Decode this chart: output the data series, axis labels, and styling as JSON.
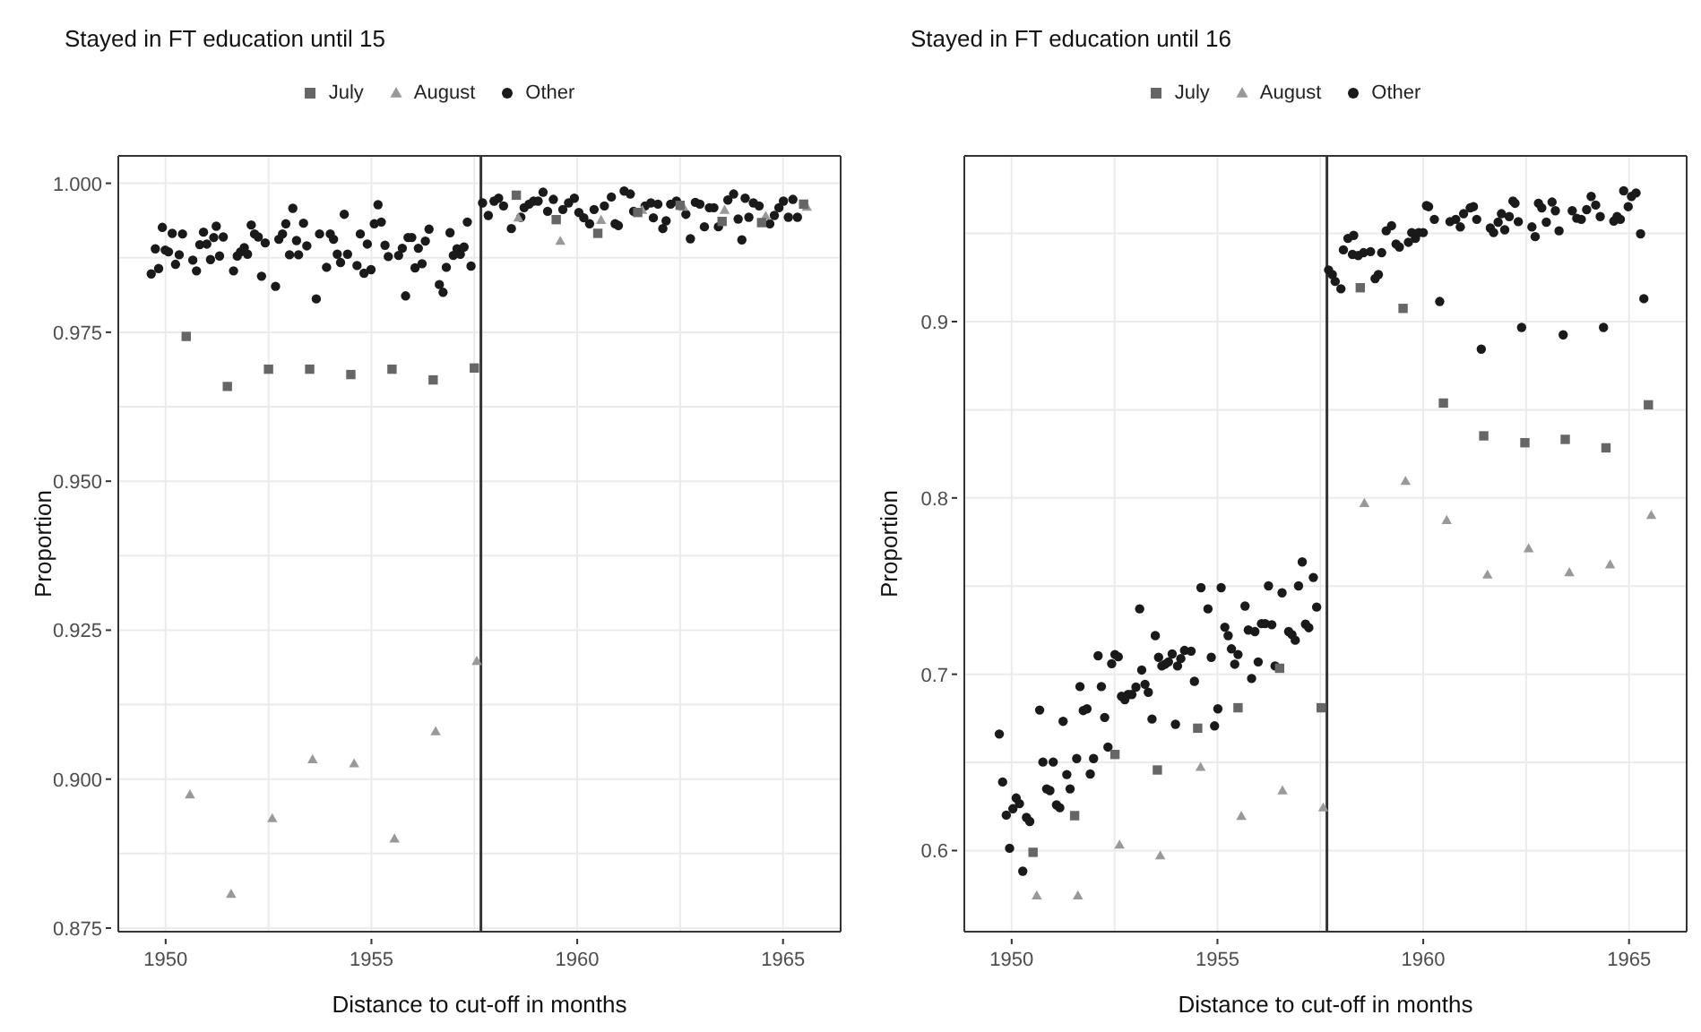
{
  "chart_data": [
    {
      "type": "scatter",
      "title": "Stayed in FT education until 15",
      "xlabel": "Distance to cut-off in months",
      "ylabel": "Proportion",
      "xlim": [
        1948.85,
        1966.4
      ],
      "xticks": [
        1950,
        {
          "value": 1952.5,
          "label": null
        },
        1955,
        {
          "value": 1957.5,
          "label": null
        },
        1960,
        {
          "value": 1962.5,
          "label": null
        },
        1965
      ],
      "ylim": [
        0.8744,
        1.0046
      ],
      "yticks": [
        {
          "value": 0.875,
          "label": "0.875"
        },
        {
          "value": 0.8875,
          "label": null
        },
        {
          "value": 0.9,
          "label": "0.900"
        },
        {
          "value": 0.9125,
          "label": null
        },
        {
          "value": 0.925,
          "label": "0.925"
        },
        {
          "value": 0.9375,
          "label": null
        },
        {
          "value": 0.95,
          "label": "0.950"
        },
        {
          "value": 0.9625,
          "label": null
        },
        {
          "value": 0.975,
          "label": "0.975"
        },
        {
          "value": 0.9875,
          "label": null
        },
        {
          "value": 1,
          "label": "1.000"
        }
      ],
      "grid": true,
      "legend": "top",
      "ref_lines": [
        {
          "axis": "x",
          "value": 1957.66,
          "color": "#333333"
        }
      ],
      "series": [
        {
          "name": "July",
          "color": "#666666",
          "marker": "square",
          "x": [
            1950.5,
            1951.5,
            1952.5,
            1953.5,
            1954.5,
            1955.5,
            1956.5,
            1957.5,
            1958.52,
            1959.49,
            1960.5,
            1961.47,
            1962.5,
            1963.52,
            1964.48,
            1965.5
          ],
          "values": [
            0.9743,
            0.9659,
            0.9688,
            0.9688,
            0.9679,
            0.9688,
            0.967,
            0.969,
            0.998,
            0.9939,
            0.9916,
            0.9951,
            0.9963,
            0.9936,
            0.9934,
            0.9965
          ]
        },
        {
          "name": "August",
          "color": "#999999",
          "marker": "triangle",
          "x": [
            1950.59,
            1951.59,
            1952.59,
            1953.57,
            1954.58,
            1955.56,
            1956.56,
            1957.56,
            1958.57,
            1959.59,
            1960.58,
            1961.58,
            1962.58,
            1963.58,
            1964.58,
            1965.58
          ],
          "values": [
            0.8974,
            0.8807,
            0.8934,
            0.9033,
            0.9026,
            0.89,
            0.908,
            0.9198,
            0.9942,
            0.9903,
            0.9938,
            0.9955,
            0.996,
            0.9955,
            0.9945,
            0.996
          ]
        },
        {
          "name": "Other",
          "color": "#1a1a1a",
          "marker": "circle",
          "x": [
            1949.65,
            1949.75,
            1949.83,
            1949.92,
            1949.99,
            1950.07,
            1950.16,
            1950.24,
            1950.33,
            1950.41,
            1950.66,
            1950.75,
            1950.83,
            1950.92,
            1951.0,
            1951.09,
            1951.17,
            1951.23,
            1951.31,
            1951.4,
            1951.65,
            1951.74,
            1951.82,
            1951.91,
            1951.99,
            1952.08,
            1952.16,
            1952.25,
            1952.33,
            1952.42,
            1952.67,
            1952.75,
            1952.84,
            1952.92,
            1953.01,
            1953.09,
            1953.18,
            1953.23,
            1953.35,
            1953.43,
            1953.66,
            1953.74,
            1953.91,
            1954.0,
            1954.08,
            1954.17,
            1954.25,
            1954.34,
            1954.42,
            1954.65,
            1954.73,
            1954.82,
            1954.9,
            1954.99,
            1955.07,
            1955.16,
            1955.24,
            1955.33,
            1955.41,
            1955.66,
            1955.75,
            1955.83,
            1955.89,
            1955.98,
            1956.06,
            1956.14,
            1956.23,
            1956.31,
            1956.4,
            1956.65,
            1956.74,
            1956.82,
            1956.91,
            1956.99,
            1957.08,
            1957.16,
            1957.25,
            1957.33,
            1957.42,
            1957.7,
            1957.84,
            1957.98,
            1958.09,
            1958.21,
            1958.4,
            1958.63,
            1958.71,
            1958.83,
            1958.94,
            1959.05,
            1959.17,
            1959.28,
            1959.42,
            1959.65,
            1959.79,
            1959.93,
            1960.04,
            1960.16,
            1960.3,
            1960.41,
            1960.66,
            1960.83,
            1960.92,
            1961.0,
            1961.14,
            1961.29,
            1961.37,
            1961.65,
            1961.79,
            1961.85,
            1961.96,
            1962.08,
            1962.16,
            1962.27,
            1962.41,
            1962.64,
            1962.75,
            1962.87,
            1962.98,
            1963.09,
            1963.21,
            1963.32,
            1963.43,
            1963.66,
            1963.8,
            1963.91,
            1964.0,
            1964.08,
            1964.17,
            1964.28,
            1964.42,
            1964.68,
            1964.79,
            1964.9,
            1965.01,
            1965.13,
            1965.24,
            1965.35
          ],
          "values": [
            0.9848,
            0.989,
            0.9857,
            0.9926,
            0.9888,
            0.9885,
            0.9916,
            0.9864,
            0.988,
            0.9915,
            0.9871,
            0.9853,
            0.9897,
            0.9918,
            0.9898,
            0.9872,
            0.9909,
            0.9928,
            0.9878,
            0.991,
            0.9853,
            0.9878,
            0.9885,
            0.9892,
            0.9881,
            0.993,
            0.9915,
            0.991,
            0.9844,
            0.99,
            0.9827,
            0.9906,
            0.9915,
            0.9932,
            0.988,
            0.9958,
            0.9904,
            0.988,
            0.9933,
            0.9895,
            0.9806,
            0.9915,
            0.9859,
            0.9915,
            0.9906,
            0.9881,
            0.9867,
            0.9948,
            0.9881,
            0.9862,
            0.9915,
            0.9849,
            0.9898,
            0.9855,
            0.9932,
            0.9964,
            0.9935,
            0.9896,
            0.9877,
            0.9879,
            0.9891,
            0.9811,
            0.9909,
            0.9909,
            0.9858,
            0.9891,
            0.9865,
            0.9903,
            0.9923,
            0.983,
            0.9817,
            0.9859,
            0.9917,
            0.9879,
            0.989,
            0.9881,
            0.9893,
            0.9935,
            0.9861,
            0.9967,
            0.9946,
            0.997,
            0.9975,
            0.9962,
            0.9924,
            0.9943,
            0.9959,
            0.9965,
            0.997,
            0.997,
            0.9985,
            0.9953,
            0.9973,
            0.9956,
            0.9967,
            0.9975,
            0.9951,
            0.9942,
            0.9932,
            0.9956,
            0.9962,
            0.9977,
            0.9932,
            0.9929,
            0.9987,
            0.9982,
            0.9953,
            0.9962,
            0.9967,
            0.9942,
            0.9965,
            0.9924,
            0.9937,
            0.9965,
            0.997,
            0.9948,
            0.9907,
            0.9968,
            0.9965,
            0.9927,
            0.9959,
            0.9959,
            0.9927,
            0.9972,
            0.9982,
            0.994,
            0.9905,
            0.9975,
            0.9943,
            0.9967,
            0.9962,
            0.9932,
            0.9946,
            0.9959,
            0.997,
            0.9943,
            0.9973,
            0.9943
          ]
        }
      ]
    },
    {
      "type": "scatter",
      "title": "Stayed in FT education until 16",
      "xlabel": "Distance to cut-off in months",
      "ylabel": "Proportion",
      "xlim": [
        1948.85,
        1966.4
      ],
      "xticks": [
        1950,
        {
          "value": 1952.5,
          "label": null
        },
        1955,
        {
          "value": 1957.5,
          "label": null
        },
        1960,
        {
          "value": 1962.5,
          "label": null
        },
        1965
      ],
      "ylim": [
        0.554,
        0.994
      ],
      "yticks": [
        0.6,
        {
          "value": 0.65,
          "label": null
        },
        0.7,
        {
          "value": 0.75,
          "label": null
        },
        0.8,
        {
          "value": 0.85,
          "label": null
        },
        0.9,
        {
          "value": 0.95,
          "label": null
        }
      ],
      "grid": true,
      "legend": "top",
      "ref_lines": [
        {
          "axis": "x",
          "value": 1957.66,
          "color": "#333333"
        }
      ],
      "series": [
        {
          "name": "July",
          "color": "#666666",
          "marker": "square",
          "x": [
            1950.52,
            1951.53,
            1952.51,
            1953.54,
            1954.52,
            1955.5,
            1956.51,
            1957.52,
            1958.47,
            1959.51,
            1960.49,
            1961.47,
            1962.47,
            1963.45,
            1964.44,
            1965.47
          ],
          "values": [
            0.599,
            0.6198,
            0.6545,
            0.6457,
            0.6694,
            0.681,
            0.7034,
            0.681,
            0.9192,
            0.9075,
            0.8538,
            0.8352,
            0.8313,
            0.8332,
            0.8284,
            0.8528
          ]
        },
        {
          "name": "August",
          "color": "#999999",
          "marker": "triangle",
          "x": [
            1950.61,
            1951.61,
            1952.62,
            1953.61,
            1954.59,
            1955.58,
            1956.58,
            1957.57,
            1958.57,
            1959.57,
            1960.57,
            1961.56,
            1962.56,
            1963.55,
            1964.54,
            1965.54
          ],
          "values": [
            0.5744,
            0.5744,
            0.6032,
            0.5971,
            0.6473,
            0.6195,
            0.634,
            0.6243,
            0.797,
            0.8095,
            0.7873,
            0.7564,
            0.7713,
            0.7577,
            0.7622,
            0.7902
          ]
        },
        {
          "name": "Other",
          "color": "#1a1a1a",
          "marker": "circle",
          "x": [
            1949.7,
            1949.78,
            1949.87,
            1949.95,
            1950.03,
            1950.11,
            1950.19,
            1950.27,
            1950.36,
            1950.44,
            1950.68,
            1950.76,
            1950.85,
            1950.93,
            1951.01,
            1951.09,
            1951.17,
            1951.25,
            1951.34,
            1951.42,
            1951.58,
            1951.66,
            1951.74,
            1951.83,
            1951.91,
            1951.99,
            1952.1,
            1952.18,
            1952.26,
            1952.34,
            1952.43,
            1952.51,
            1952.59,
            1952.67,
            1952.75,
            1952.83,
            1952.92,
            1953.02,
            1953.11,
            1953.16,
            1953.24,
            1953.32,
            1953.41,
            1953.49,
            1953.57,
            1953.65,
            1953.73,
            1953.81,
            1953.9,
            1953.98,
            1954.03,
            1954.11,
            1954.2,
            1954.36,
            1954.44,
            1954.6,
            1954.77,
            1954.85,
            1954.93,
            1955.01,
            1955.09,
            1955.18,
            1955.26,
            1955.34,
            1955.42,
            1955.5,
            1955.67,
            1955.75,
            1955.83,
            1955.91,
            1955.99,
            1956.07,
            1956.16,
            1956.24,
            1956.32,
            1956.4,
            1956.57,
            1956.73,
            1956.81,
            1956.89,
            1956.97,
            1957.06,
            1957.14,
            1957.22,
            1957.33,
            1957.41,
            1957.7,
            1957.79,
            1957.86,
            1958.0,
            1958.06,
            1958.17,
            1958.31,
            1958.28,
            1958.42,
            1958.55,
            1958.72,
            1958.83,
            1958.91,
            1958.99,
            1959.1,
            1959.23,
            1959.34,
            1959.42,
            1959.64,
            1959.72,
            1959.81,
            1959.89,
            1960.0,
            1960.08,
            1960.13,
            1960.27,
            1960.4,
            1960.65,
            1960.79,
            1960.9,
            1960.98,
            1961.14,
            1961.22,
            1961.3,
            1961.41,
            1961.63,
            1961.71,
            1961.82,
            1961.9,
            1961.98,
            1962.09,
            1962.18,
            1962.23,
            1962.31,
            1962.39,
            1962.64,
            1962.72,
            1962.8,
            1962.88,
            1962.99,
            1963.13,
            1963.21,
            1963.3,
            1963.4,
            1963.62,
            1963.73,
            1963.84,
            1963.97,
            1964.08,
            1964.19,
            1964.3,
            1964.38,
            1964.63,
            1964.71,
            1964.79,
            1964.87,
            1964.98,
            1965.06,
            1965.17,
            1965.28,
            1965.36
          ],
          "values": [
            0.6661,
            0.6389,
            0.6201,
            0.6013,
            0.6237,
            0.6298,
            0.6266,
            0.5883,
            0.6188,
            0.6165,
            0.6797,
            0.6502,
            0.635,
            0.634,
            0.6502,
            0.6259,
            0.6243,
            0.6733,
            0.6431,
            0.635,
            0.6522,
            0.693,
            0.6794,
            0.6804,
            0.6434,
            0.6522,
            0.7105,
            0.693,
            0.6755,
            0.6587,
            0.706,
            0.7112,
            0.7099,
            0.6875,
            0.6856,
            0.6885,
            0.6885,
            0.6927,
            0.7371,
            0.7024,
            0.6943,
            0.6898,
            0.6746,
            0.7219,
            0.7096,
            0.7047,
            0.7057,
            0.707,
            0.7115,
            0.6716,
            0.7047,
            0.7089,
            0.7135,
            0.7131,
            0.696,
            0.7491,
            0.7371,
            0.7096,
            0.6707,
            0.6804,
            0.7491,
            0.7267,
            0.7219,
            0.7144,
            0.7057,
            0.7112,
            0.7387,
            0.7251,
            0.6976,
            0.7242,
            0.707,
            0.7287,
            0.7287,
            0.7501,
            0.7281,
            0.7047,
            0.7462,
            0.7242,
            0.7225,
            0.7193,
            0.7501,
            0.7637,
            0.7284,
            0.7264,
            0.7549,
            0.7381,
            0.9293,
            0.9267,
            0.9228,
            0.9186,
            0.9407,
            0.9472,
            0.9489,
            0.9381,
            0.9375,
            0.9391,
            0.9397,
            0.9244,
            0.9267,
            0.9391,
            0.9515,
            0.9544,
            0.944,
            0.9423,
            0.945,
            0.9505,
            0.9472,
            0.9505,
            0.9505,
            0.9658,
            0.9652,
            0.958,
            0.9114,
            0.9567,
            0.958,
            0.9537,
            0.9612,
            0.9645,
            0.9652,
            0.958,
            0.8844,
            0.9531,
            0.9505,
            0.9564,
            0.9612,
            0.9521,
            0.9596,
            0.9684,
            0.9671,
            0.9567,
            0.8967,
            0.9537,
            0.9482,
            0.9671,
            0.9645,
            0.9564,
            0.9678,
            0.9629,
            0.9515,
            0.8925,
            0.9629,
            0.9586,
            0.958,
            0.9635,
            0.971,
            0.9661,
            0.9596,
            0.8967,
            0.957,
            0.9596,
            0.958,
            0.9742,
            0.9652,
            0.971,
            0.973,
            0.9498,
            0.913
          ]
        }
      ]
    }
  ]
}
